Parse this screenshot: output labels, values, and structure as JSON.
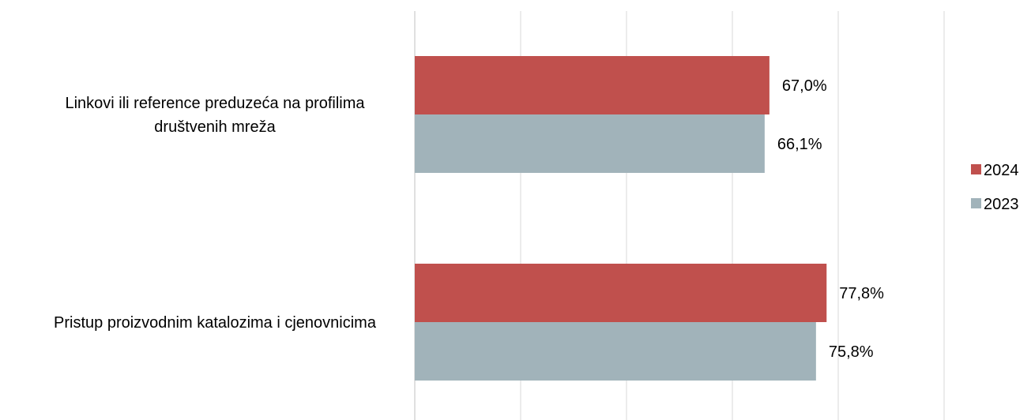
{
  "chart_data": {
    "type": "bar",
    "orientation": "horizontal",
    "categories": [
      [
        "Linkovi ili reference preduzeća na profilima",
        "društvenih mreža"
      ],
      [
        "Pristup proizvodnim katalozima i cjenovnicima"
      ]
    ],
    "series": [
      {
        "name": "2024",
        "color": "#C0504D",
        "values": [
          67.0,
          77.8
        ],
        "labels": [
          "67,0%",
          "77,8%"
        ]
      },
      {
        "name": "2023",
        "color": "#A1B3BA",
        "values": [
          66.1,
          75.8
        ],
        "labels": [
          "66,1%",
          "75,8%"
        ]
      }
    ],
    "xlim": [
      0,
      100
    ],
    "grid": true,
    "gridline_color": "#E6E6E6",
    "legend_position": "right"
  }
}
